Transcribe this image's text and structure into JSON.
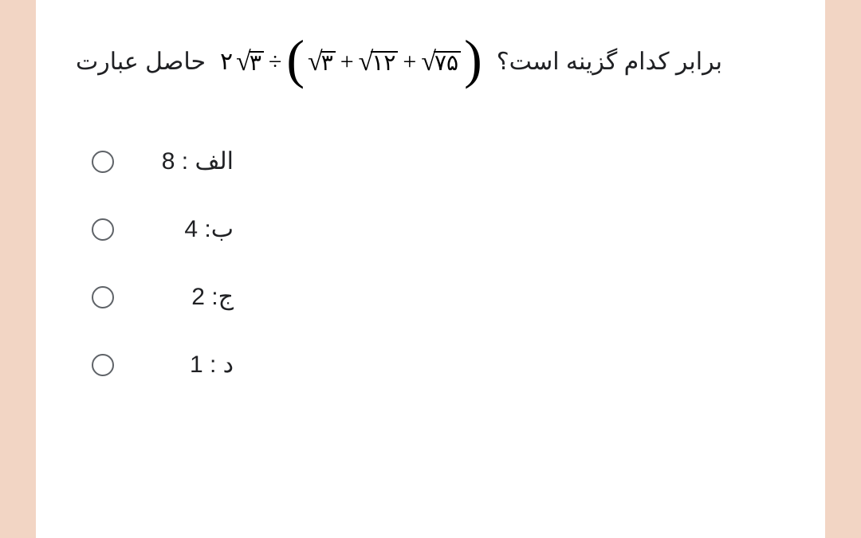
{
  "question": {
    "lead_text": "حاصل عبارت",
    "trail_text": "برابر کدام گزینه است؟",
    "expression": {
      "coef1": "۲",
      "root1": "۳",
      "div": "÷",
      "root2": "۳",
      "plus1": "+",
      "root3": "۱۲",
      "plus2": "+",
      "root4": "۷۵"
    }
  },
  "options": [
    {
      "label": "الف :",
      "value": "8"
    },
    {
      "label": "ب:",
      "value": "4"
    },
    {
      "label": "ج:",
      "value": "2"
    },
    {
      "label": "د :",
      "value": "1"
    }
  ],
  "styling": {
    "page_bg": "#f2d5c4",
    "card_bg": "#ffffff",
    "text_color": "#202124",
    "radio_border": "#5f6368",
    "question_fontsize": 30,
    "option_fontsize": 30,
    "math_fontsize": 34
  }
}
